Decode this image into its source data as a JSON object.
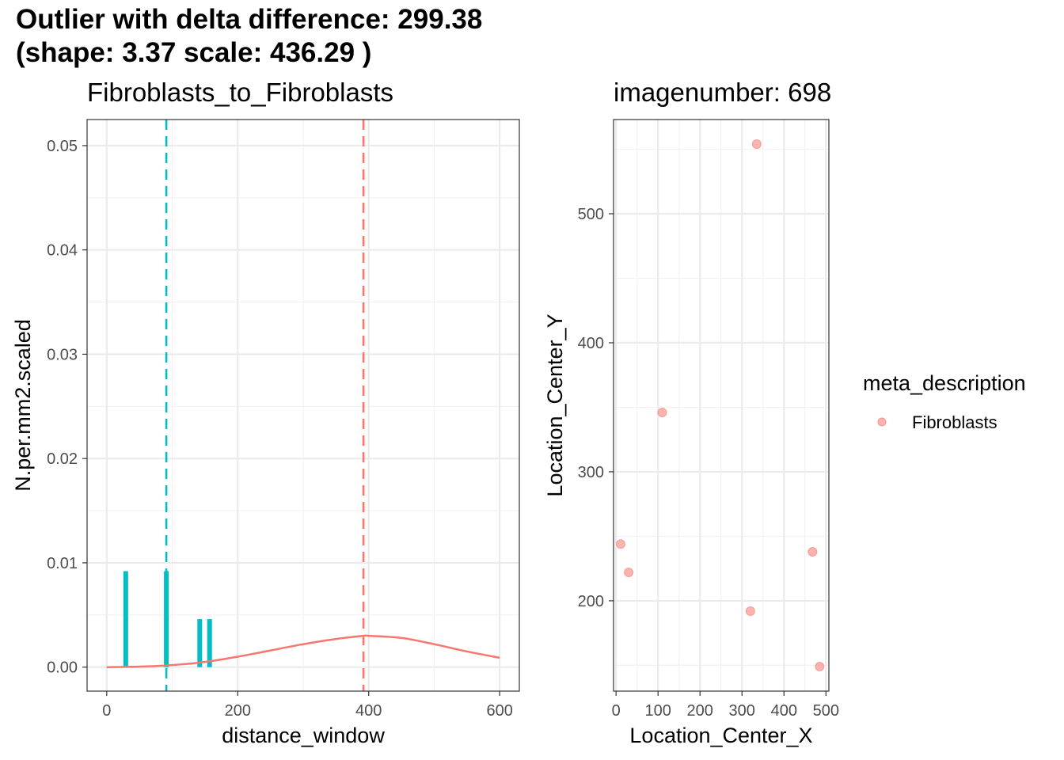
{
  "title_line1": "Outlier with delta difference: 299.38",
  "title_line2": "(shape: 3.37 scale: 436.29 )",
  "colors": {
    "cyan": "#00BFC4",
    "salmon": "#F8766D",
    "grid": "#ebebeb",
    "tick_text": "#4d4d4d"
  },
  "chart_data": [
    {
      "type": "bar",
      "title": "Fibroblasts_to_Fibroblasts",
      "xlabel": "distance_window",
      "ylabel": "N.per.mm2.scaled",
      "xlim": [
        -30,
        630
      ],
      "ylim": [
        -0.0023,
        0.0525
      ],
      "x_ticks": [
        0,
        200,
        400,
        600
      ],
      "x_tick_labels": [
        "0",
        "200",
        "400",
        "600"
      ],
      "y_ticks": [
        0.0,
        0.01,
        0.02,
        0.03,
        0.04,
        0.05
      ],
      "y_tick_labels": [
        "0.00",
        "0.01",
        "0.02",
        "0.03",
        "0.04",
        "0.05"
      ],
      "grid": true,
      "bars": {
        "color": "#00BFC4",
        "x": [
          29,
          91,
          142,
          157
        ],
        "values": [
          0.0092,
          0.0092,
          0.0046,
          0.0046
        ]
      },
      "curve": {
        "color": "#F8766D",
        "x": [
          0,
          50,
          100,
          150,
          200,
          250,
          300,
          350,
          392,
          400,
          450,
          500,
          550,
          600
        ],
        "values": [
          0.0,
          5e-05,
          0.0002,
          0.0005,
          0.001,
          0.0016,
          0.0022,
          0.0027,
          0.003,
          0.003,
          0.0028,
          0.0022,
          0.0015,
          0.0009
        ]
      },
      "vlines": [
        {
          "x": 91,
          "color": "#00BFC4",
          "style": "dashed"
        },
        {
          "x": 392,
          "color": "#F8766D",
          "style": "dashed"
        }
      ]
    },
    {
      "type": "scatter",
      "title": "imagenumber:  698",
      "xlabel": "Location_Center_X",
      "ylabel": "Location_Center_Y",
      "xlim": [
        -6,
        507
      ],
      "ylim": [
        130,
        573
      ],
      "x_ticks": [
        0,
        100,
        200,
        300,
        400,
        500
      ],
      "x_tick_labels": [
        "0",
        "100",
        "200",
        "300",
        "400",
        "500"
      ],
      "y_ticks": [
        200,
        300,
        400,
        500
      ],
      "y_tick_labels": [
        "200",
        "300",
        "400",
        "500"
      ],
      "grid": true,
      "legend": {
        "title": "meta_description",
        "placement": "right",
        "entries": [
          {
            "label": "Fibroblasts",
            "color": "#F8766D"
          }
        ]
      },
      "points": {
        "color": "#F8766D",
        "x": [
          335,
          110,
          11,
          30,
          468,
          320,
          485
        ],
        "y": [
          554,
          346,
          244,
          222,
          238,
          192,
          149
        ]
      }
    }
  ]
}
